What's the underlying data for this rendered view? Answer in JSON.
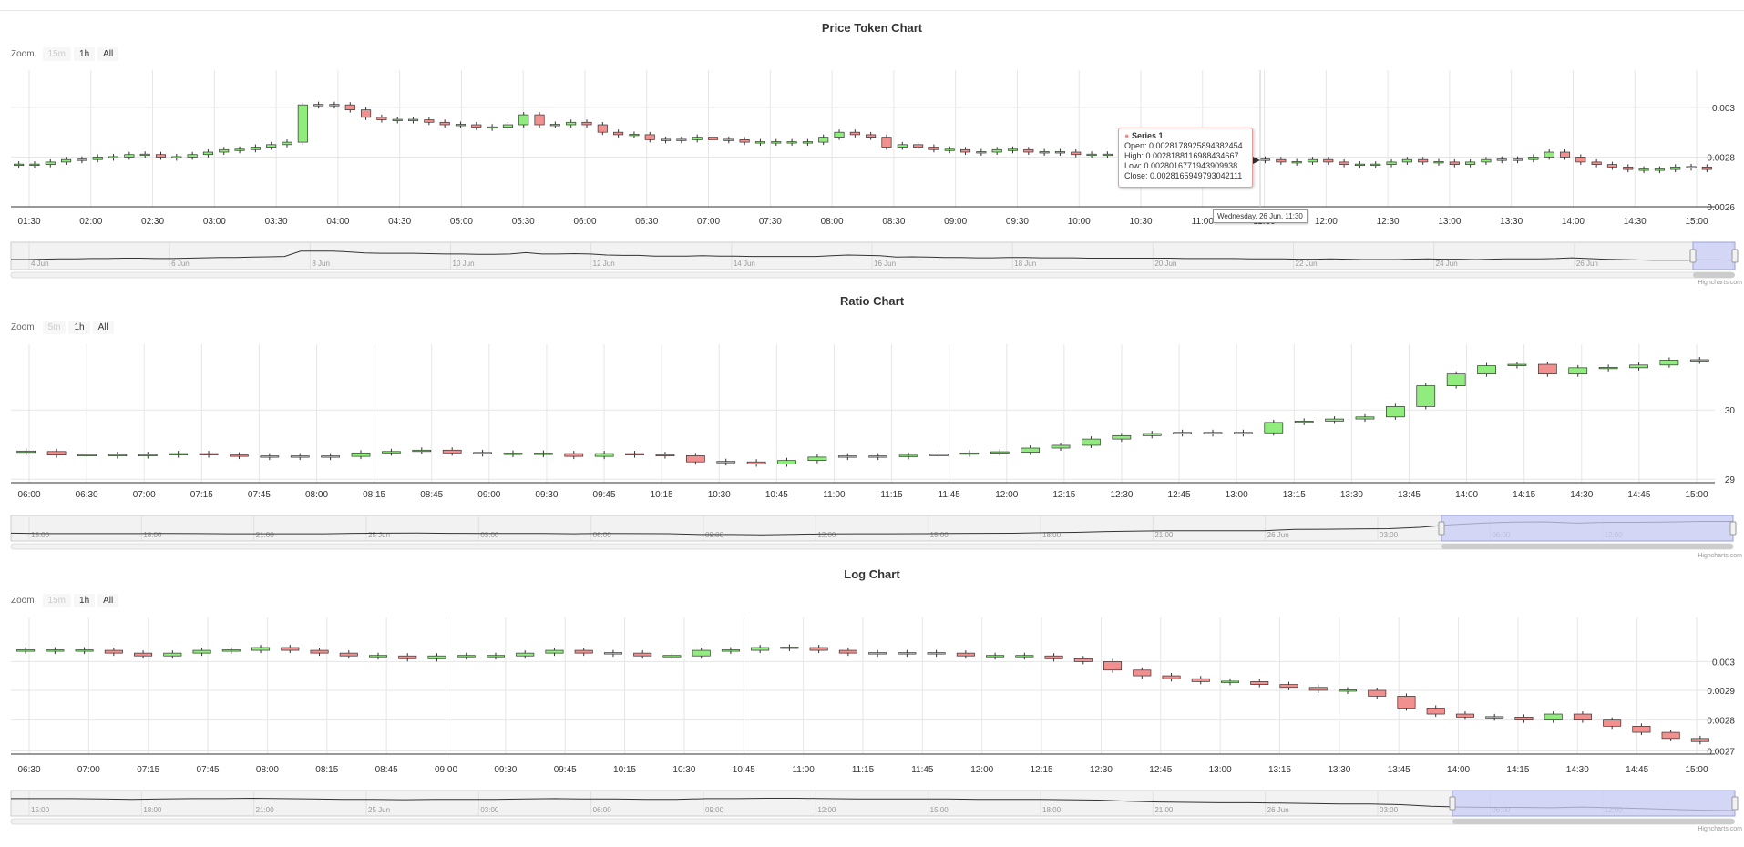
{
  "colors": {
    "up": "#90ed7d",
    "down": "#f28f8f",
    "grid": "#e6e6e6",
    "navigator_mask": "#c8ccf6",
    "axis_text": "#666666"
  },
  "zoom": {
    "label": "Zoom",
    "buttons": [
      "15m",
      "1h",
      "All"
    ],
    "buttons_ratio": [
      "5m",
      "1h",
      "All"
    ]
  },
  "credits": "Highcharts.com",
  "tooltip": {
    "series": "Series 1",
    "open": "Open: 0.0028178925894382454",
    "high": "High: 0.0028188116988434667",
    "low": "Low: 0.0028016771943909938",
    "close": "Close: 0.0028165949793042111",
    "date": "Wednesday, 26 Jun, 11:30"
  },
  "chart_data": [
    {
      "title": "Price Token Chart",
      "type": "candlestick",
      "y_ticks": [
        "0.003",
        "0.0028",
        "0.0026"
      ],
      "ylim": [
        0.0026,
        0.00315
      ],
      "x_ticks": [
        "01:30",
        "02:00",
        "02:30",
        "03:00",
        "03:30",
        "04:00",
        "04:30",
        "05:00",
        "05:30",
        "06:00",
        "06:30",
        "07:00",
        "07:30",
        "08:00",
        "08:30",
        "09:00",
        "09:30",
        "10:00",
        "10:30",
        "11:00",
        "11:30",
        "12:00",
        "12:30",
        "13:00",
        "13:30",
        "14:00",
        "14:30",
        "15:00"
      ],
      "navigator_ticks": [
        "4 Jun",
        "6 Jun",
        "8 Jun",
        "10 Jun",
        "12 Jun",
        "14 Jun",
        "16 Jun",
        "18 Jun",
        "20 Jun",
        "22 Jun",
        "24 Jun",
        "26 Jun"
      ],
      "close": [
        0.00277,
        0.00277,
        0.00278,
        0.00279,
        0.00279,
        0.0028,
        0.0028,
        0.00281,
        0.00281,
        0.0028,
        0.0028,
        0.00281,
        0.00282,
        0.00283,
        0.00283,
        0.00284,
        0.00285,
        0.00286,
        0.00301,
        0.00301,
        0.00301,
        0.00299,
        0.00296,
        0.00295,
        0.00295,
        0.00295,
        0.00294,
        0.00293,
        0.00293,
        0.00292,
        0.00292,
        0.00293,
        0.00297,
        0.00293,
        0.00293,
        0.00294,
        0.00293,
        0.0029,
        0.00289,
        0.00289,
        0.00287,
        0.00287,
        0.00287,
        0.00288,
        0.00287,
        0.00287,
        0.00286,
        0.00286,
        0.00286,
        0.00286,
        0.00286,
        0.00288,
        0.0029,
        0.00289,
        0.00288,
        0.00284,
        0.00285,
        0.00284,
        0.00283,
        0.00283,
        0.00282,
        0.00282,
        0.00283,
        0.00283,
        0.00282,
        0.00282,
        0.00282,
        0.00281,
        0.00281,
        0.00281,
        0.00281,
        0.00281,
        0.00281,
        0.0028,
        0.0028,
        0.0028,
        0.0028,
        0.00279,
        0.00279,
        0.00279,
        0.00278,
        0.00278,
        0.00279,
        0.00278,
        0.00277,
        0.00277,
        0.00277,
        0.00278,
        0.00279,
        0.00278,
        0.00278,
        0.00277,
        0.00278,
        0.00279,
        0.00279,
        0.00279,
        0.0028,
        0.00282,
        0.0028,
        0.00278,
        0.00277,
        0.00276,
        0.00275,
        0.00275,
        0.00275,
        0.00276,
        0.00276,
        0.00275
      ]
    },
    {
      "title": "Ratio Chart",
      "type": "candlestick",
      "y_ticks": [
        "30",
        "29"
      ],
      "ylim": [
        28.95,
        30.95
      ],
      "x_ticks": [
        "06:00",
        "06:30",
        "07:00",
        "07:15",
        "07:45",
        "08:00",
        "08:15",
        "08:45",
        "09:00",
        "09:30",
        "09:45",
        "10:15",
        "10:30",
        "10:45",
        "11:00",
        "11:15",
        "11:45",
        "12:00",
        "12:15",
        "12:30",
        "12:45",
        "13:00",
        "13:15",
        "13:30",
        "13:45",
        "14:00",
        "14:15",
        "14:30",
        "14:45",
        "15:00"
      ],
      "navigator_ticks": [
        "15:00",
        "18:00",
        "21:00",
        "25 Jun",
        "03:00",
        "06:00",
        "09:00",
        "12:00",
        "15:00",
        "18:00",
        "21:00",
        "26 Jun",
        "03:00",
        "06:00",
        "12:00"
      ],
      "close": [
        29.4,
        29.35,
        29.35,
        29.35,
        29.35,
        29.37,
        29.35,
        29.33,
        29.33,
        29.33,
        29.33,
        29.38,
        29.4,
        29.42,
        29.38,
        29.37,
        29.37,
        29.37,
        29.33,
        29.37,
        29.35,
        29.34,
        29.25,
        29.25,
        29.22,
        29.27,
        29.32,
        29.33,
        29.33,
        29.34,
        29.36,
        29.38,
        29.39,
        29.45,
        29.49,
        29.58,
        29.63,
        29.66,
        29.67,
        29.67,
        29.67,
        29.82,
        29.84,
        29.87,
        29.9,
        30.05,
        30.35,
        30.52,
        30.64,
        30.66,
        30.52,
        30.61,
        30.61,
        30.65,
        30.72,
        30.72
      ]
    },
    {
      "title": "Log Chart",
      "type": "candlestick",
      "y_ticks": [
        "0.003",
        "0.0029",
        "0.0028",
        "0.0027"
      ],
      "ylim": [
        0.00269,
        0.00316
      ],
      "x_ticks": [
        "06:30",
        "07:00",
        "07:15",
        "07:45",
        "08:00",
        "08:15",
        "08:45",
        "09:00",
        "09:30",
        "09:45",
        "10:15",
        "10:30",
        "10:45",
        "11:00",
        "11:15",
        "11:45",
        "12:00",
        "12:15",
        "12:30",
        "12:45",
        "13:00",
        "13:15",
        "13:30",
        "13:45",
        "14:00",
        "14:15",
        "14:30",
        "14:45",
        "15:00"
      ],
      "navigator_ticks": [
        "15:00",
        "18:00",
        "21:00",
        "25 Jun",
        "03:00",
        "06:00",
        "09:00",
        "12:00",
        "15:00",
        "18:00",
        "21:00",
        "26 Jun",
        "03:00",
        "06:00",
        "12:00"
      ],
      "close": [
        0.00304,
        0.00304,
        0.00304,
        0.00303,
        0.00302,
        0.00303,
        0.00304,
        0.00304,
        0.00305,
        0.00304,
        0.00303,
        0.00302,
        0.00302,
        0.00301,
        0.00302,
        0.00302,
        0.00302,
        0.00303,
        0.00304,
        0.00303,
        0.00303,
        0.00302,
        0.00302,
        0.00304,
        0.00304,
        0.00305,
        0.00305,
        0.00304,
        0.00303,
        0.00303,
        0.00303,
        0.00303,
        0.00302,
        0.00302,
        0.00302,
        0.00301,
        0.003,
        0.00297,
        0.00295,
        0.00294,
        0.00293,
        0.00293,
        0.00292,
        0.00291,
        0.0029,
        0.0029,
        0.00288,
        0.00284,
        0.00282,
        0.00281,
        0.00281,
        0.0028,
        0.00282,
        0.0028,
        0.00278,
        0.00276,
        0.00274,
        0.00273
      ]
    }
  ]
}
